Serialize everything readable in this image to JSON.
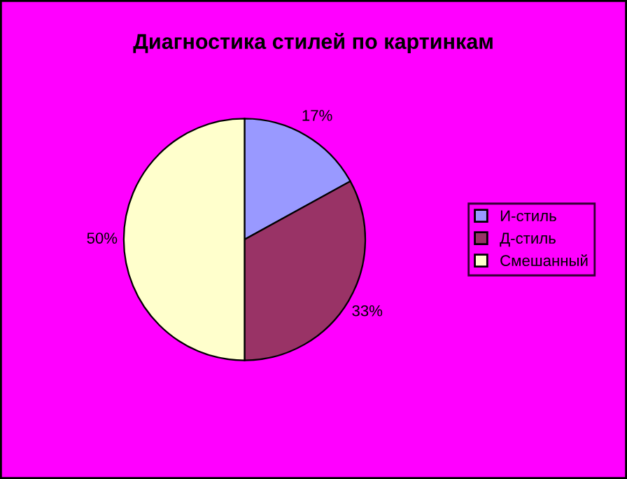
{
  "chart_data": {
    "type": "pie",
    "title": "Диагностика стилей по картинкам",
    "categories": [
      "И-стиль",
      "Д-стиль",
      "Смешанный"
    ],
    "values": [
      17,
      33,
      50
    ],
    "colors": [
      "#9999ff",
      "#993366",
      "#ffffcc"
    ],
    "value_labels": [
      "17%",
      "33%",
      "50%"
    ],
    "legend": "right"
  }
}
